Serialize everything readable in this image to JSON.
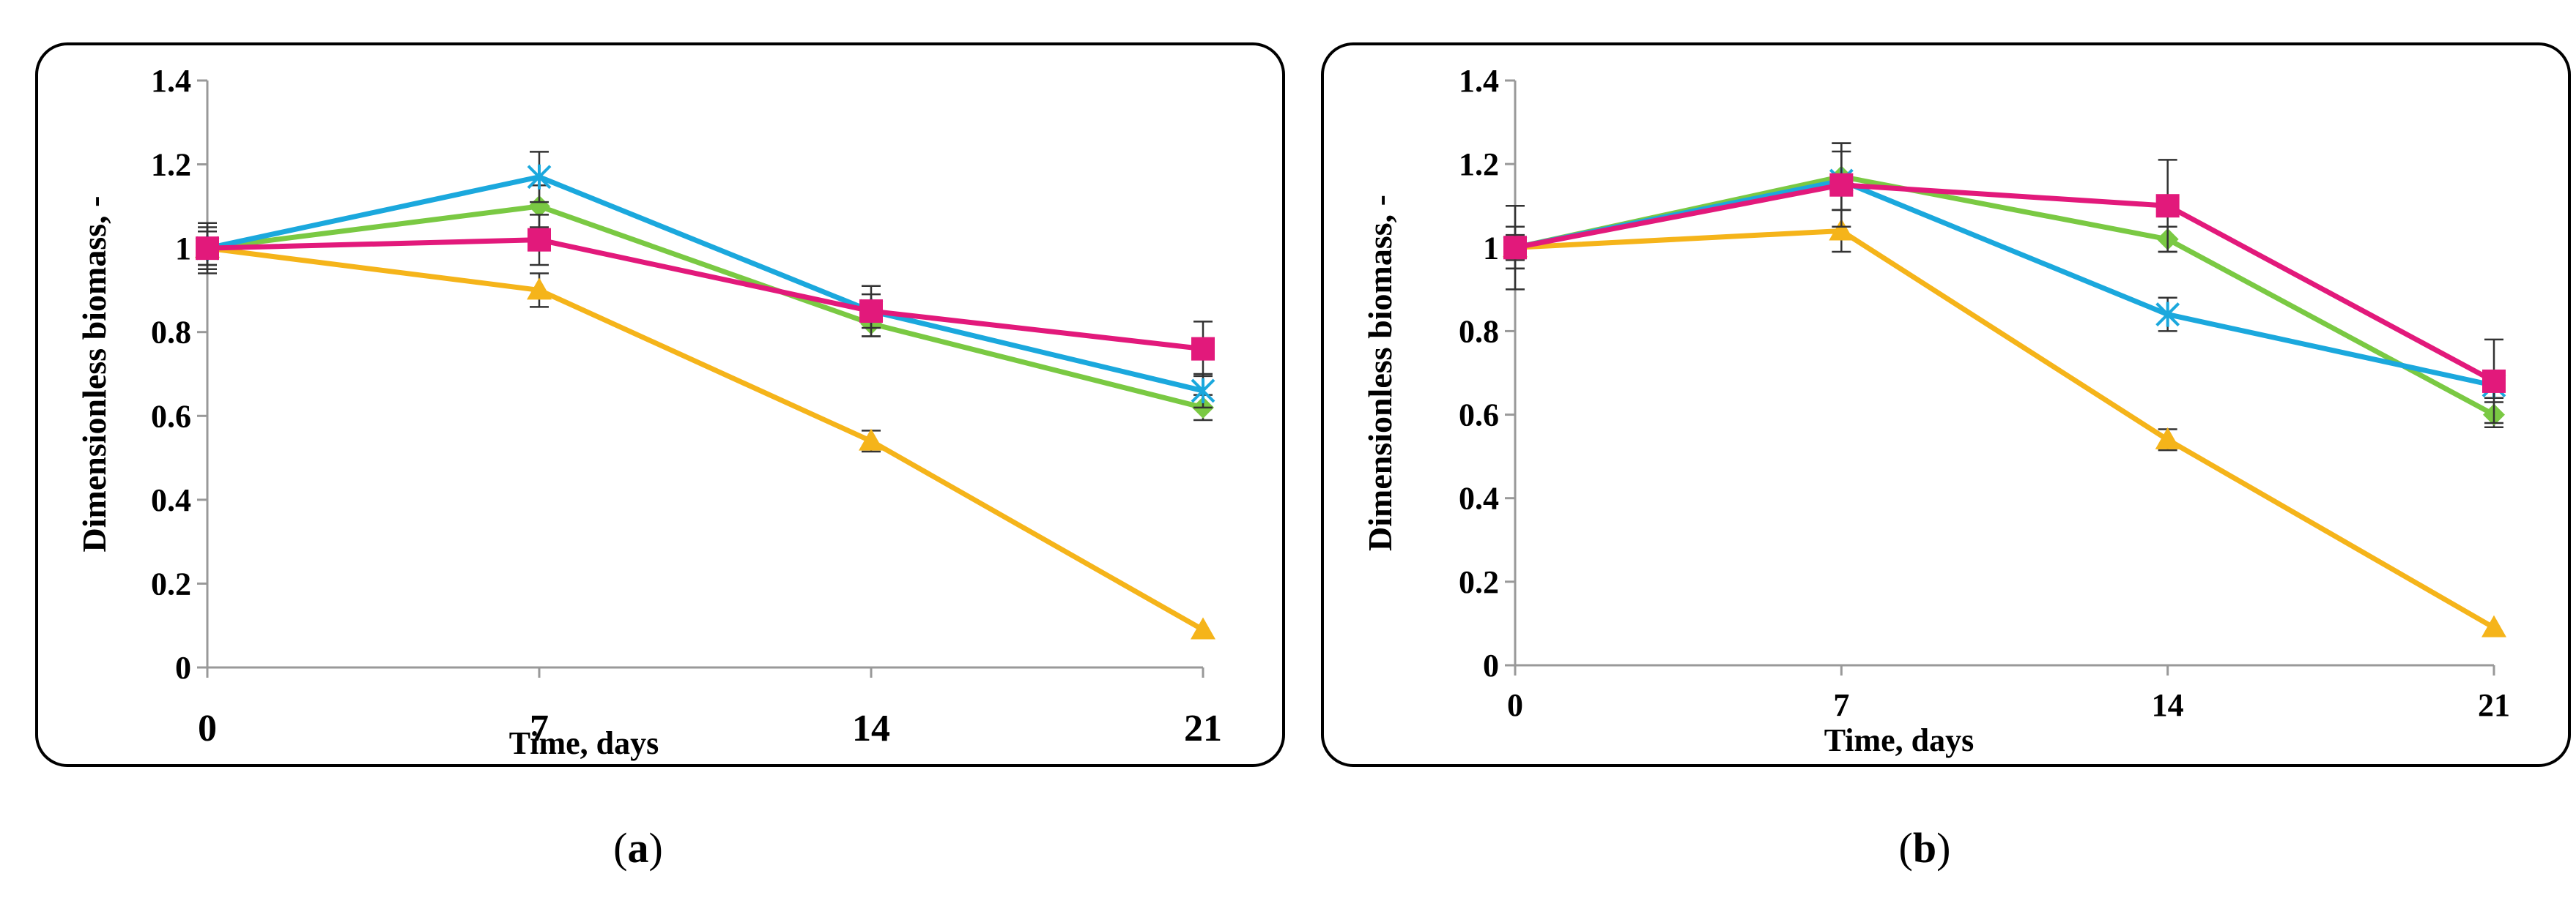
{
  "colors": {
    "pink": "#e2197b",
    "green": "#7ac943",
    "cyan": "#1ba8dd",
    "orange": "#f5b41a"
  },
  "chart_data": [
    {
      "id": "a",
      "type": "line",
      "caption": "a",
      "xlabel": "Time, days",
      "ylabel": "Dimensionless biomass, -",
      "x": [
        0,
        7,
        14,
        21
      ],
      "x_tick_labels": [
        "0",
        "7",
        "14",
        "21"
      ],
      "ylim": [
        0,
        1.4
      ],
      "y_ticks": [
        0,
        0.2,
        0.4,
        0.6,
        0.8,
        1,
        1.2,
        1.4
      ],
      "y_tick_labels": [
        "0",
        "0.2",
        "0.4",
        "0.6",
        "0.8",
        "1",
        "1.2",
        "1.4"
      ],
      "series": [
        {
          "name": "orange-triangle",
          "color": "#f5b41a",
          "marker": "triangle",
          "values": [
            1.0,
            0.9,
            0.54,
            0.09
          ],
          "errors": [
            0.04,
            0.04,
            0.025,
            0.0
          ]
        },
        {
          "name": "green-diamond",
          "color": "#7ac943",
          "marker": "diamond",
          "values": [
            1.0,
            1.1,
            0.82,
            0.62
          ],
          "errors": [
            0.05,
            0.05,
            0.03,
            0.03
          ]
        },
        {
          "name": "cyan-star",
          "color": "#1ba8dd",
          "marker": "star",
          "values": [
            1.0,
            1.17,
            0.85,
            0.66
          ],
          "errors": [
            0.06,
            0.06,
            0.04,
            0.04
          ]
        },
        {
          "name": "pink-square",
          "color": "#e2197b",
          "marker": "square",
          "values": [
            1.0,
            1.02,
            0.85,
            0.76
          ],
          "errors": [
            0.04,
            0.06,
            0.06,
            0.065
          ]
        }
      ]
    },
    {
      "id": "b",
      "type": "line",
      "caption": "b",
      "xlabel": "Time, days",
      "ylabel": "Dimensionless biomass, -",
      "x": [
        0,
        7,
        14,
        21
      ],
      "x_tick_labels": [
        "0",
        "7",
        "14",
        "21"
      ],
      "ylim": [
        0,
        1.4
      ],
      "y_ticks": [
        0,
        0.2,
        0.4,
        0.6,
        0.8,
        1,
        1.2,
        1.4
      ],
      "y_tick_labels": [
        "0",
        "0.2",
        "0.4",
        "0.6",
        "0.8",
        "1",
        "1.2",
        "1.4"
      ],
      "series": [
        {
          "name": "orange-triangle",
          "color": "#f5b41a",
          "marker": "triangle",
          "values": [
            1.0,
            1.04,
            0.54,
            0.09
          ],
          "errors": [
            0.05,
            0.05,
            0.025,
            0.0
          ]
        },
        {
          "name": "green-diamond",
          "color": "#7ac943",
          "marker": "diamond",
          "values": [
            1.0,
            1.17,
            1.02,
            0.6
          ],
          "errors": [
            0.1,
            0.08,
            0.03,
            0.03
          ]
        },
        {
          "name": "cyan-star",
          "color": "#1ba8dd",
          "marker": "star",
          "values": [
            1.0,
            1.16,
            0.84,
            0.67
          ],
          "errors": [
            0.05,
            0.07,
            0.04,
            0.03
          ]
        },
        {
          "name": "pink-square",
          "color": "#e2197b",
          "marker": "square",
          "values": [
            1.0,
            1.15,
            1.1,
            0.68
          ],
          "errors": [
            0.03,
            0.1,
            0.11,
            0.1
          ]
        }
      ]
    }
  ]
}
